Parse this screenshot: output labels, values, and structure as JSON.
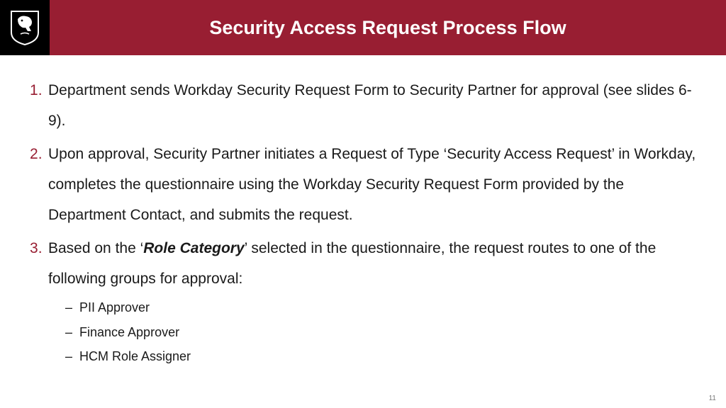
{
  "header": {
    "title": "Security Access Request Process Flow",
    "title_color": "#ffffff",
    "title_fontsize": 27,
    "title_bar_bg": "#981e32",
    "logo_bg": "#000000"
  },
  "typography": {
    "body_fontsize": 21,
    "body_line_height": 2.05,
    "sub_fontsize": 18,
    "sub_line_height": 1.9,
    "list_marker_color": "#981e32",
    "body_color": "#1a1a1a"
  },
  "items": [
    {
      "text": "Department sends Workday Security Request Form to Security Partner for approval (see slides 6-9)."
    },
    {
      "text": "Upon approval, Security Partner initiates a Request of Type ‘Security Access Request’ in Workday, completes the questionnaire using the Workday Security Request Form provided by the Department Contact, and submits the request."
    },
    {
      "pre": "Based on the ‘",
      "emph": "Role Category",
      "post": "’ selected in the questionnaire, the request routes to one of the following groups for approval:",
      "sub": [
        "PII Approver",
        "Finance Approver",
        "HCM Role Assigner"
      ]
    }
  ],
  "page_number": "11",
  "page_number_fontsize": 10
}
